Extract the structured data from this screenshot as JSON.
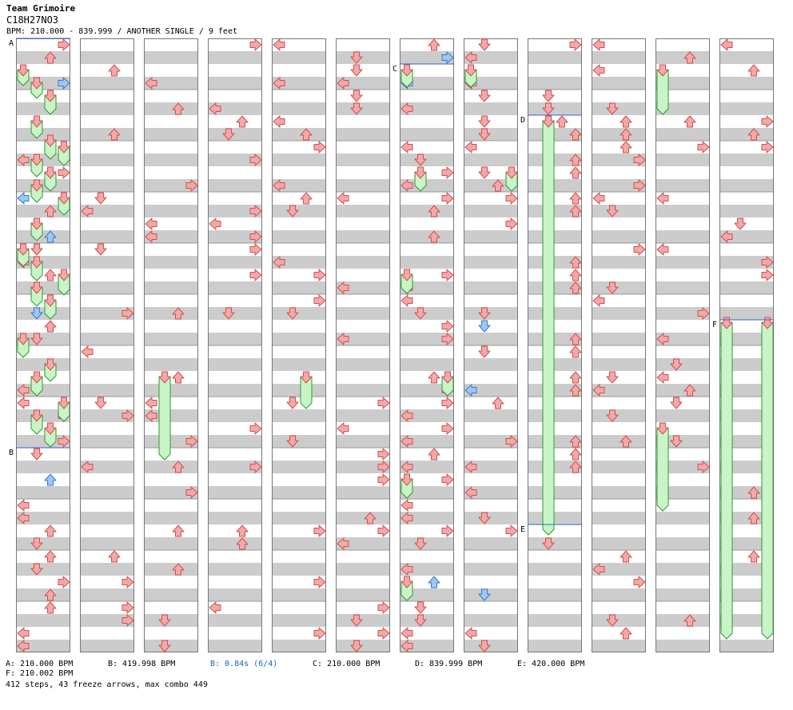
{
  "header": {
    "artist": "Team Grimoire",
    "title": "C18H27NO3",
    "info": "BPM: 210.000 - 839.999 / ANOTHER SINGLE / 9 feet"
  },
  "colors": {
    "tap_red": "#f4a8a8",
    "tap_red_stroke": "#d05050",
    "tap_blue": "#9cc8f8",
    "tap_blue_stroke": "#3a78c8",
    "freeze_fill": "#c8f4c8",
    "freeze_stroke": "#2e9a2e",
    "stripe": "#cccccc",
    "marker_line": "#3366cc"
  },
  "icons": {
    "tap": "arrow-icon",
    "freeze": "freeze-arrow-icon"
  },
  "chart": {
    "markers": [
      {
        "label": "A"
      },
      {
        "label": "B"
      },
      {
        "label": "C"
      },
      {
        "label": "D"
      },
      {
        "label": "E"
      },
      {
        "label": "F"
      }
    ]
  },
  "footer": {
    "row1": [
      {
        "text": "A: 210.000 BPM",
        "kind": "bpm"
      },
      {
        "text": "B: 419.998 BPM",
        "kind": "bpm"
      },
      {
        "text": "B: 0.84s (6/4)",
        "kind": "stop"
      },
      {
        "text": "C: 210.000 BPM",
        "kind": "bpm"
      },
      {
        "text": "D: 839.999 BPM",
        "kind": "bpm"
      },
      {
        "text": "E: 420.000 BPM",
        "kind": "bpm"
      }
    ],
    "row2": [
      {
        "text": "F: 210.002 BPM",
        "kind": "bpm"
      }
    ],
    "summary": "412 steps, 43 freeze arrows, max combo 449"
  }
}
